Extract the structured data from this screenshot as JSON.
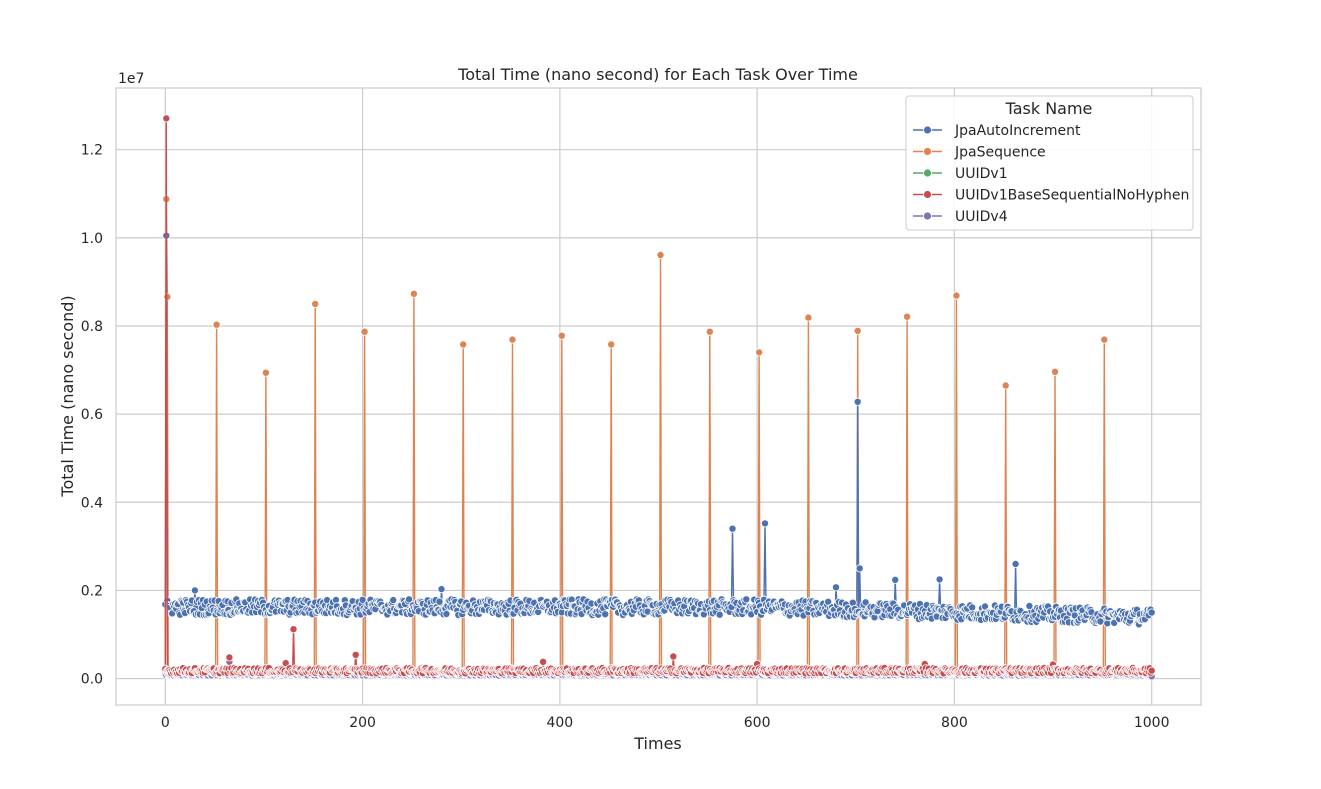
{
  "chart_data": {
    "type": "line",
    "title": "Total Time (nano second) for Each Task Over Time",
    "xlabel": "Times",
    "ylabel": "Total Time (nano second)",
    "y_offset_text": "1e7",
    "xlim": [
      -50,
      1050
    ],
    "ylim": [
      -0.06,
      1.34
    ],
    "y_scale": 10000000,
    "x_ticks": [
      0,
      200,
      400,
      600,
      800,
      1000
    ],
    "x_tick_labels": [
      "0",
      "200",
      "400",
      "600",
      "800",
      "1000"
    ],
    "y_ticks": [
      0.0,
      0.2,
      0.4,
      0.6,
      0.8,
      1.0,
      1.2
    ],
    "y_tick_labels": [
      "0.0",
      "0.2",
      "0.4",
      "0.6",
      "0.8",
      "1.0",
      "1.2"
    ],
    "grid": true,
    "legend": {
      "title": "Task Name",
      "placement": "top-right"
    },
    "series": [
      {
        "name": "JpaAutoIncrement",
        "color": "#4c72b0",
        "baseline": 0.162,
        "jitter": 0.018,
        "points": [
          [
            1,
            1.005
          ],
          [
            575,
            0.34
          ],
          [
            608,
            0.352
          ],
          [
            702,
            0.628
          ],
          [
            704,
            0.25
          ],
          [
            862,
            0.26
          ],
          [
            785,
            0.225
          ],
          [
            740,
            0.224
          ],
          [
            680,
            0.207
          ],
          [
            280,
            0.203
          ],
          [
            30,
            0.2
          ],
          [
            1000,
            0.15
          ]
        ]
      },
      {
        "name": "JpaSequence",
        "color": "#dd8452",
        "baseline": 0.012,
        "jitter": 0.004,
        "points": [
          [
            1,
            1.088
          ],
          [
            2,
            0.866
          ],
          [
            52,
            0.803
          ],
          [
            102,
            0.694
          ],
          [
            152,
            0.85
          ],
          [
            202,
            0.787
          ],
          [
            252,
            0.873
          ],
          [
            302,
            0.758
          ],
          [
            352,
            0.769
          ],
          [
            402,
            0.778
          ],
          [
            452,
            0.758
          ],
          [
            502,
            0.961
          ],
          [
            552,
            0.787
          ],
          [
            602,
            0.74
          ],
          [
            652,
            0.819
          ],
          [
            702,
            0.789
          ],
          [
            752,
            0.821
          ],
          [
            802,
            0.869
          ],
          [
            852,
            0.665
          ],
          [
            902,
            0.696
          ],
          [
            952,
            0.769
          ]
        ]
      },
      {
        "name": "UUIDv1",
        "color": "#55a868",
        "baseline": 0.013,
        "jitter": 0.003,
        "points": []
      },
      {
        "name": "UUIDv1BaseSequentialNoHyphen",
        "color": "#c44e52",
        "baseline": 0.018,
        "jitter": 0.006,
        "points": [
          [
            1,
            1.271
          ],
          [
            130,
            0.112
          ],
          [
            193,
            0.054
          ],
          [
            65,
            0.048
          ],
          [
            515,
            0.05
          ],
          [
            383,
            0.038
          ],
          [
            770,
            0.033
          ],
          [
            900,
            0.032
          ],
          [
            600,
            0.033
          ],
          [
            122,
            0.035
          ]
        ]
      },
      {
        "name": "UUIDv4",
        "color": "#8172b3",
        "baseline": 0.01,
        "jitter": 0.003,
        "points": [
          [
            65,
            0.038
          ],
          [
            1000,
            0.005
          ]
        ]
      }
    ]
  }
}
